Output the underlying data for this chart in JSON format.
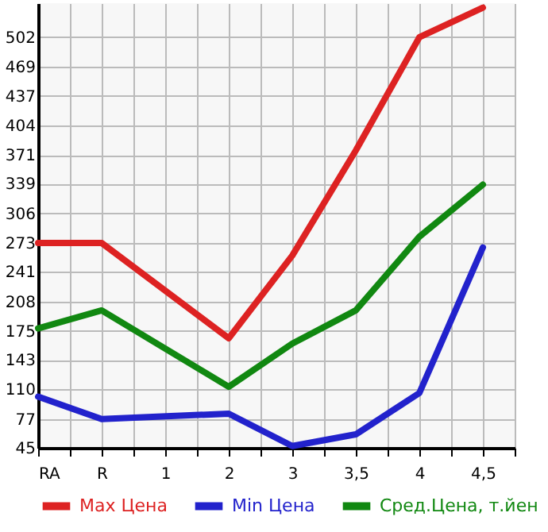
{
  "chart_data": {
    "type": "line",
    "categories": [
      "RA",
      "R",
      "1",
      "2",
      "3",
      "3,5",
      "4",
      "4,5"
    ],
    "series": [
      {
        "name": "Max Цена",
        "color": "#dd2222",
        "values": [
          273,
          273,
          null,
          167,
          259,
          376,
          502,
          535
        ]
      },
      {
        "name": "Min Цена",
        "color": "#2222cc",
        "values": [
          102,
          77,
          null,
          83,
          47,
          60,
          106,
          268
        ]
      },
      {
        "name": "Сред.Цена, т.йен",
        "color": "#118811",
        "values": [
          178,
          198,
          null,
          113,
          161,
          198,
          280,
          338
        ]
      }
    ],
    "ylim": [
      45,
      540
    ],
    "yticks": [
      45,
      77,
      110,
      143,
      175,
      208,
      241,
      273,
      306,
      339,
      371,
      404,
      437,
      469,
      502
    ],
    "grid": true,
    "legend": "bottom",
    "marker": "none",
    "line_style": "solid"
  }
}
